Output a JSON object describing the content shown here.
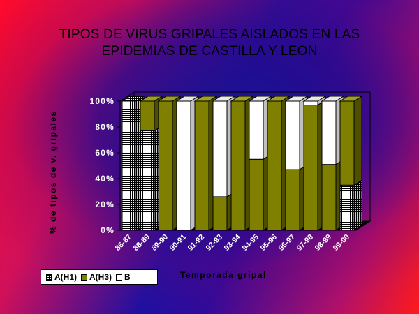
{
  "title_lines": [
    "TIPOS DE VIRUS GRIPALES AISLADOS EN LAS",
    "EPIDEMIAS DE CASTILLA Y LEON"
  ],
  "chart_data": {
    "type": "bar",
    "stacked": true,
    "percent_stacked": true,
    "three_d": true,
    "title": "TIPOS DE VIRUS GRIPALES AISLADOS EN LAS EPIDEMIAS DE CASTILLA Y LEON",
    "xlabel": "Temporada gripal",
    "ylabel": "% de tipos de v. gripales",
    "ylim": [
      0,
      100
    ],
    "yticks": [
      "0%",
      "20%",
      "40%",
      "60%",
      "80%",
      "100%"
    ],
    "categories": [
      "86-87",
      "88-89",
      "89-90",
      "90-91",
      "91-92",
      "92-93",
      "93-94",
      "94-95",
      "95-96",
      "96-97",
      "97-98",
      "98-99",
      "99-00"
    ],
    "series": [
      {
        "name": "A(H1)",
        "values": [
          100,
          77,
          0,
          0,
          0,
          0,
          0,
          0,
          0,
          0,
          0,
          0,
          35
        ]
      },
      {
        "name": "A(H3)",
        "values": [
          0,
          23,
          100,
          0,
          100,
          26,
          100,
          55,
          100,
          47,
          97,
          51,
          65
        ]
      },
      {
        "name": "B",
        "values": [
          0,
          0,
          0,
          100,
          0,
          74,
          0,
          45,
          0,
          53,
          3,
          49,
          0
        ]
      }
    ],
    "legend_position": "bottom-left",
    "colors": {
      "A(H1)": "#ffffff",
      "A(H3)": "#808000",
      "B": "#ffffff"
    },
    "grid": false
  }
}
